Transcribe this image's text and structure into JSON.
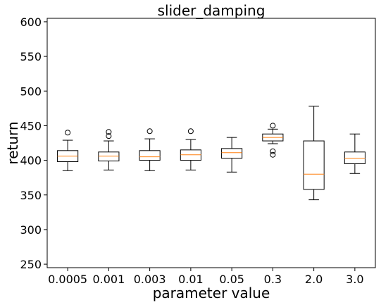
{
  "chart_data": {
    "type": "box",
    "title": "slider_damping",
    "xlabel": "parameter value",
    "ylabel": "return",
    "ylim": [
      245,
      605
    ],
    "yticks": [
      250,
      300,
      350,
      400,
      450,
      500,
      550,
      600
    ],
    "grid": false,
    "legend": "none",
    "colors": {
      "box": "#000000",
      "median": "#ff7f0e"
    },
    "categories": [
      "0.0005",
      "0.001",
      "0.003",
      "0.01",
      "0.05",
      "0.3",
      "2.0",
      "3.0"
    ],
    "boxes": [
      {
        "whislo": 385,
        "q1": 398,
        "med": 406,
        "q3": 414,
        "whishi": 429,
        "fliers": [
          440
        ]
      },
      {
        "whislo": 386,
        "q1": 399,
        "med": 406,
        "q3": 412,
        "whishi": 428,
        "fliers": [
          435,
          441
        ]
      },
      {
        "whislo": 385,
        "q1": 400,
        "med": 405,
        "q3": 414,
        "whishi": 431,
        "fliers": [
          442
        ]
      },
      {
        "whislo": 386,
        "q1": 400,
        "med": 408,
        "q3": 415,
        "whishi": 430,
        "fliers": [
          442
        ]
      },
      {
        "whislo": 383,
        "q1": 403,
        "med": 411,
        "q3": 417,
        "whishi": 433,
        "fliers": []
      },
      {
        "whislo": 424,
        "q1": 428,
        "med": 433,
        "q3": 438,
        "whishi": 445,
        "fliers": [
          408,
          413,
          450
        ]
      },
      {
        "whislo": 343,
        "q1": 358,
        "med": 380,
        "q3": 428,
        "whishi": 478,
        "fliers": []
      },
      {
        "whislo": 381,
        "q1": 395,
        "med": 403,
        "q3": 412,
        "whishi": 438,
        "fliers": []
      }
    ]
  }
}
